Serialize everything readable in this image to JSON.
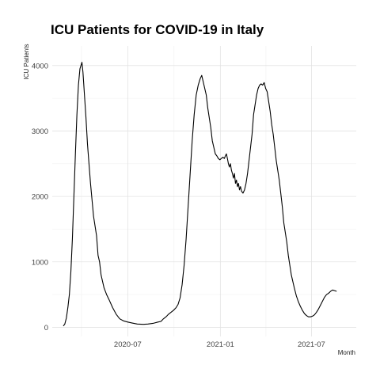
{
  "chart_data": {
    "type": "line",
    "title": "ICU Patients for COVID-19 in Italy",
    "xlabel": "Month",
    "ylabel": "ICU Patients",
    "x_tick_labels": [
      "2020-07",
      "2021-01",
      "2021-07"
    ],
    "y_tick_labels": [
      "0",
      "1000",
      "2000",
      "3000",
      "4000"
    ],
    "ylim": [
      -140,
      4300
    ],
    "xlim": [
      "2020-02-02",
      "2021-09-28"
    ],
    "grid": true,
    "legend": "none",
    "series": [
      {
        "color": "#000000",
        "points": [
          [
            "2020-02-24",
            20
          ],
          [
            "2020-02-27",
            50
          ],
          [
            "2020-03-01",
            140
          ],
          [
            "2020-03-04",
            300
          ],
          [
            "2020-03-07",
            500
          ],
          [
            "2020-03-10",
            850
          ],
          [
            "2020-03-13",
            1350
          ],
          [
            "2020-03-16",
            2000
          ],
          [
            "2020-03-19",
            2650
          ],
          [
            "2020-03-22",
            3250
          ],
          [
            "2020-03-25",
            3700
          ],
          [
            "2020-03-28",
            3950
          ],
          [
            "2020-04-01",
            4050
          ],
          [
            "2020-04-03",
            3900
          ],
          [
            "2020-04-06",
            3550
          ],
          [
            "2020-04-09",
            3200
          ],
          [
            "2020-04-12",
            2800
          ],
          [
            "2020-04-15",
            2500
          ],
          [
            "2020-04-18",
            2200
          ],
          [
            "2020-04-21",
            1950
          ],
          [
            "2020-04-24",
            1700
          ],
          [
            "2020-04-27",
            1550
          ],
          [
            "2020-04-30",
            1400
          ],
          [
            "2020-05-03",
            1100
          ],
          [
            "2020-05-06",
            1000
          ],
          [
            "2020-05-09",
            800
          ],
          [
            "2020-05-12",
            700
          ],
          [
            "2020-05-15",
            600
          ],
          [
            "2020-05-20",
            500
          ],
          [
            "2020-05-25",
            420
          ],
          [
            "2020-06-01",
            300
          ],
          [
            "2020-06-08",
            200
          ],
          [
            "2020-06-15",
            130
          ],
          [
            "2020-06-22",
            100
          ],
          [
            "2020-07-01",
            80
          ],
          [
            "2020-07-10",
            65
          ],
          [
            "2020-07-20",
            50
          ],
          [
            "2020-08-01",
            45
          ],
          [
            "2020-08-10",
            50
          ],
          [
            "2020-08-20",
            60
          ],
          [
            "2020-08-30",
            80
          ],
          [
            "2020-09-05",
            90
          ],
          [
            "2020-09-10",
            130
          ],
          [
            "2020-09-15",
            160
          ],
          [
            "2020-09-20",
            200
          ],
          [
            "2020-09-25",
            230
          ],
          [
            "2020-09-30",
            260
          ],
          [
            "2020-10-05",
            300
          ],
          [
            "2020-10-09",
            350
          ],
          [
            "2020-10-13",
            450
          ],
          [
            "2020-10-17",
            650
          ],
          [
            "2020-10-21",
            950
          ],
          [
            "2020-10-25",
            1350
          ],
          [
            "2020-10-29",
            1850
          ],
          [
            "2020-11-02",
            2350
          ],
          [
            "2020-11-06",
            2850
          ],
          [
            "2020-11-10",
            3250
          ],
          [
            "2020-11-14",
            3550
          ],
          [
            "2020-11-18",
            3700
          ],
          [
            "2020-11-22",
            3800
          ],
          [
            "2020-11-25",
            3850
          ],
          [
            "2020-11-28",
            3750
          ],
          [
            "2020-12-01",
            3650
          ],
          [
            "2020-12-04",
            3550
          ],
          [
            "2020-12-07",
            3350
          ],
          [
            "2020-12-10",
            3200
          ],
          [
            "2020-12-13",
            3050
          ],
          [
            "2020-12-16",
            2850
          ],
          [
            "2020-12-19",
            2750
          ],
          [
            "2020-12-22",
            2650
          ],
          [
            "2020-12-25",
            2620
          ],
          [
            "2020-12-28",
            2580
          ],
          [
            "2020-12-31",
            2560
          ],
          [
            "2021-01-03",
            2580
          ],
          [
            "2021-01-06",
            2600
          ],
          [
            "2021-01-09",
            2580
          ],
          [
            "2021-01-11",
            2620
          ],
          [
            "2021-01-13",
            2650
          ],
          [
            "2021-01-15",
            2580
          ],
          [
            "2021-01-17",
            2500
          ],
          [
            "2021-01-19",
            2450
          ],
          [
            "2021-01-21",
            2500
          ],
          [
            "2021-01-23",
            2400
          ],
          [
            "2021-01-25",
            2350
          ],
          [
            "2021-01-27",
            2280
          ],
          [
            "2021-01-29",
            2350
          ],
          [
            "2021-01-31",
            2200
          ],
          [
            "2021-02-02",
            2250
          ],
          [
            "2021-02-04",
            2150
          ],
          [
            "2021-02-06",
            2200
          ],
          [
            "2021-02-08",
            2100
          ],
          [
            "2021-02-10",
            2150
          ],
          [
            "2021-02-12",
            2080
          ],
          [
            "2021-02-15",
            2050
          ],
          [
            "2021-02-18",
            2100
          ],
          [
            "2021-02-21",
            2200
          ],
          [
            "2021-02-24",
            2350
          ],
          [
            "2021-02-27",
            2550
          ],
          [
            "2021-03-02",
            2750
          ],
          [
            "2021-03-05",
            2950
          ],
          [
            "2021-03-08",
            3250
          ],
          [
            "2021-03-11",
            3400
          ],
          [
            "2021-03-14",
            3550
          ],
          [
            "2021-03-17",
            3650
          ],
          [
            "2021-03-20",
            3700
          ],
          [
            "2021-03-23",
            3720
          ],
          [
            "2021-03-26",
            3700
          ],
          [
            "2021-03-29",
            3740
          ],
          [
            "2021-04-01",
            3650
          ],
          [
            "2021-04-04",
            3600
          ],
          [
            "2021-04-07",
            3450
          ],
          [
            "2021-04-10",
            3300
          ],
          [
            "2021-04-13",
            3100
          ],
          [
            "2021-04-16",
            2950
          ],
          [
            "2021-04-19",
            2750
          ],
          [
            "2021-04-22",
            2550
          ],
          [
            "2021-04-25",
            2400
          ],
          [
            "2021-04-28",
            2250
          ],
          [
            "2021-05-01",
            2050
          ],
          [
            "2021-05-04",
            1850
          ],
          [
            "2021-05-07",
            1600
          ],
          [
            "2021-05-10",
            1450
          ],
          [
            "2021-05-13",
            1300
          ],
          [
            "2021-05-16",
            1100
          ],
          [
            "2021-05-19",
            950
          ],
          [
            "2021-05-22",
            800
          ],
          [
            "2021-05-25",
            700
          ],
          [
            "2021-05-28",
            600
          ],
          [
            "2021-06-01",
            480
          ],
          [
            "2021-06-05",
            390
          ],
          [
            "2021-06-09",
            320
          ],
          [
            "2021-06-13",
            260
          ],
          [
            "2021-06-17",
            210
          ],
          [
            "2021-06-21",
            180
          ],
          [
            "2021-06-25",
            160
          ],
          [
            "2021-06-29",
            160
          ],
          [
            "2021-07-03",
            170
          ],
          [
            "2021-07-07",
            190
          ],
          [
            "2021-07-11",
            230
          ],
          [
            "2021-07-15",
            280
          ],
          [
            "2021-07-19",
            340
          ],
          [
            "2021-07-23",
            400
          ],
          [
            "2021-07-27",
            460
          ],
          [
            "2021-07-31",
            500
          ],
          [
            "2021-08-04",
            520
          ],
          [
            "2021-08-08",
            550
          ],
          [
            "2021-08-12",
            570
          ],
          [
            "2021-08-16",
            560
          ],
          [
            "2021-08-20",
            550
          ]
        ]
      }
    ]
  }
}
